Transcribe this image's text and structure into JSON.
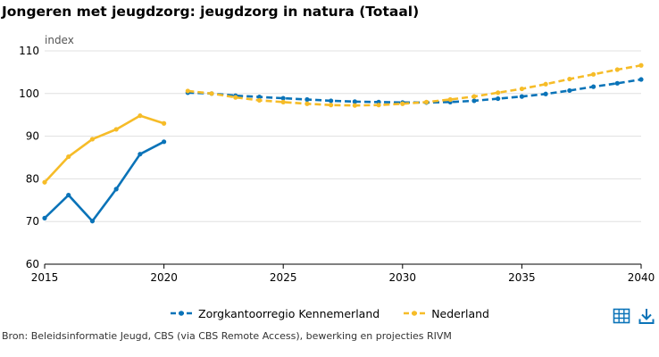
{
  "title": "Jongeren met jeugdzorg: jeugdzorg in natura (Totaal)",
  "source": "Bron: Beleidsinformatie Jeugd, CBS (via CBS Remote Access), bewerking en projecties RIVM",
  "icons": {
    "table": "table-icon",
    "download": "download-icon"
  },
  "chart_data": {
    "type": "line",
    "ylabel": "index",
    "xlim": [
      2015,
      2040
    ],
    "ylim": [
      60,
      110
    ],
    "x_ticks": [
      2015,
      2020,
      2025,
      2030,
      2035,
      2040
    ],
    "y_ticks": [
      60,
      70,
      80,
      90,
      100,
      110
    ],
    "grid": "horizontal",
    "legend_position": "bottom",
    "series": [
      {
        "name": "Zorgkantoorregio Kennemerland",
        "color": "#0a73b8",
        "historical": {
          "x": [
            2015,
            2016,
            2017,
            2018,
            2019,
            2020
          ],
          "y": [
            70.8,
            76.2,
            70.1,
            77.6,
            85.8,
            88.7
          ]
        },
        "projection": {
          "x": [
            2021,
            2022,
            2023,
            2024,
            2025,
            2026,
            2027,
            2028,
            2029,
            2030,
            2031,
            2032,
            2033,
            2034,
            2035,
            2036,
            2037,
            2038,
            2039,
            2040
          ],
          "y": [
            100.2,
            100.0,
            99.5,
            99.2,
            98.9,
            98.6,
            98.3,
            98.1,
            98.0,
            97.9,
            97.9,
            98.0,
            98.3,
            98.8,
            99.3,
            99.9,
            100.7,
            101.6,
            102.4,
            103.3
          ]
        }
      },
      {
        "name": "Nederland",
        "color": "#f6bc28",
        "historical": {
          "x": [
            2015,
            2016,
            2017,
            2018,
            2019,
            2020
          ],
          "y": [
            79.2,
            85.2,
            89.3,
            91.6,
            94.8,
            93.0
          ]
        },
        "projection": {
          "x": [
            2021,
            2022,
            2023,
            2024,
            2025,
            2026,
            2027,
            2028,
            2029,
            2030,
            2031,
            2032,
            2033,
            2034,
            2035,
            2036,
            2037,
            2038,
            2039,
            2040
          ],
          "y": [
            100.6,
            100.0,
            99.1,
            98.4,
            98.0,
            97.6,
            97.3,
            97.2,
            97.3,
            97.6,
            98.0,
            98.6,
            99.3,
            100.2,
            101.1,
            102.2,
            103.4,
            104.5,
            105.6,
            106.6
          ]
        }
      }
    ]
  }
}
